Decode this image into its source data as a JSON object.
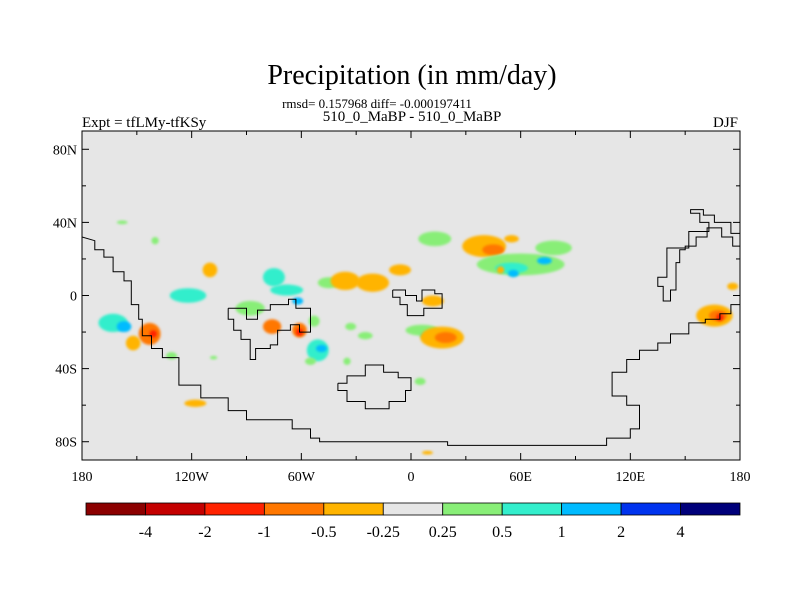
{
  "chart_data": {
    "type": "heatmap",
    "title": "Precipitation (in mm/day)",
    "stats_line": "rmsd= 0.157968 diff= -0.000197411",
    "subtitle": "510_0_MaBP - 510_0_MaBP",
    "left_label": "Expt = tfLMy-tfKSy",
    "right_label": "DJF",
    "x_range": [
      -180,
      180
    ],
    "y_range": [
      -90,
      90
    ],
    "x_ticks": [
      {
        "value": -180,
        "label": "180"
      },
      {
        "value": -120,
        "label": "120W"
      },
      {
        "value": -60,
        "label": "60W"
      },
      {
        "value": 0,
        "label": "0"
      },
      {
        "value": 60,
        "label": "60E"
      },
      {
        "value": 120,
        "label": "120E"
      },
      {
        "value": 180,
        "label": "180"
      }
    ],
    "y_ticks": [
      {
        "value": 80,
        "label": "80N"
      },
      {
        "value": 40,
        "label": "40N"
      },
      {
        "value": 0,
        "label": "0"
      },
      {
        "value": -40,
        "label": "40S"
      },
      {
        "value": -80,
        "label": "80S"
      }
    ],
    "colorbar": {
      "colors": [
        "#8b0000",
        "#c40000",
        "#ff2200",
        "#ff7700",
        "#ffb400",
        "#e6e6e6",
        "#88ee77",
        "#33eecc",
        "#00bbff",
        "#0033ee",
        "#00007a"
      ],
      "labels": [
        "-4",
        "-2",
        "-1",
        "-0.5",
        "-0.25",
        "0.25",
        "0.5",
        "1",
        "2",
        "4"
      ],
      "background_color": "#e6e6e6"
    },
    "anomalies": [
      {
        "lon": -163,
        "lat": -15,
        "rx": 8,
        "ry": 5,
        "value": 0.6
      },
      {
        "lon": -157,
        "lat": -17,
        "rx": 4,
        "ry": 3,
        "value": 1.2
      },
      {
        "lon": -143,
        "lat": -21,
        "rx": 6,
        "ry": 6,
        "value": -0.6
      },
      {
        "lon": -141,
        "lat": -21,
        "rx": 2,
        "ry": 2,
        "value": -1.5
      },
      {
        "lon": -152,
        "lat": -26,
        "rx": 4,
        "ry": 4,
        "value": -0.4
      },
      {
        "lon": -131,
        "lat": -33,
        "rx": 3,
        "ry": 2,
        "value": 0.4
      },
      {
        "lon": -110,
        "lat": 14,
        "rx": 4,
        "ry": 4,
        "value": -0.4
      },
      {
        "lon": -140,
        "lat": 30,
        "rx": 2,
        "ry": 2,
        "value": 0.4
      },
      {
        "lon": -122,
        "lat": 0,
        "rx": 10,
        "ry": 4,
        "value": 0.5
      },
      {
        "lon": -88,
        "lat": -7,
        "rx": 8,
        "ry": 4,
        "value": 0.4
      },
      {
        "lon": -75,
        "lat": 10,
        "rx": 6,
        "ry": 5,
        "value": 0.5
      },
      {
        "lon": -68,
        "lat": 3,
        "rx": 9,
        "ry": 3,
        "value": 0.6
      },
      {
        "lon": -62,
        "lat": -3,
        "rx": 3,
        "ry": 2,
        "value": 1.2
      },
      {
        "lon": -76,
        "lat": -17,
        "rx": 5,
        "ry": 4,
        "value": -0.6
      },
      {
        "lon": -61,
        "lat": -19,
        "rx": 4,
        "ry": 4,
        "value": -0.6
      },
      {
        "lon": -61,
        "lat": -20,
        "rx": 2,
        "ry": 2,
        "value": -1.5
      },
      {
        "lon": -53,
        "lat": -14,
        "rx": 3,
        "ry": 3,
        "value": 0.4
      },
      {
        "lon": -51,
        "lat": -30,
        "rx": 6,
        "ry": 6,
        "value": 0.5
      },
      {
        "lon": -49,
        "lat": -29,
        "rx": 3,
        "ry": 2,
        "value": 1.2
      },
      {
        "lon": -55,
        "lat": -36,
        "rx": 3,
        "ry": 2,
        "value": 0.4
      },
      {
        "lon": -33,
        "lat": -17,
        "rx": 3,
        "ry": 2,
        "value": 0.4
      },
      {
        "lon": -45,
        "lat": 7,
        "rx": 6,
        "ry": 3,
        "value": 0.4
      },
      {
        "lon": -36,
        "lat": 8,
        "rx": 8,
        "ry": 5,
        "value": -0.4
      },
      {
        "lon": -21,
        "lat": 7,
        "rx": 9,
        "ry": 5,
        "value": -0.4
      },
      {
        "lon": -6,
        "lat": 14,
        "rx": 6,
        "ry": 3,
        "value": -0.4
      },
      {
        "lon": 12,
        "lat": -3,
        "rx": 6,
        "ry": 3,
        "value": -0.3
      },
      {
        "lon": 6,
        "lat": -19,
        "rx": 9,
        "ry": 3,
        "value": 0.4
      },
      {
        "lon": 10,
        "lat": -22,
        "rx": 5,
        "ry": 2,
        "value": 0.6
      },
      {
        "lon": 17,
        "lat": -23,
        "rx": 12,
        "ry": 6,
        "value": -0.4
      },
      {
        "lon": 19,
        "lat": -23,
        "rx": 6,
        "ry": 3,
        "value": -0.7
      },
      {
        "lon": 5,
        "lat": -47,
        "rx": 3,
        "ry": 2,
        "value": 0.4
      },
      {
        "lon": -35,
        "lat": -36,
        "rx": 2,
        "ry": 2,
        "value": 0.4
      },
      {
        "lon": 13,
        "lat": 31,
        "rx": 9,
        "ry": 4,
        "value": 0.4
      },
      {
        "lon": 40,
        "lat": 27,
        "rx": 12,
        "ry": 6,
        "value": -0.4
      },
      {
        "lon": 45,
        "lat": 25,
        "rx": 6,
        "ry": 3,
        "value": -0.6
      },
      {
        "lon": 55,
        "lat": 31,
        "rx": 4,
        "ry": 2,
        "value": -0.4
      },
      {
        "lon": 60,
        "lat": 17,
        "rx": 24,
        "ry": 6,
        "value": 0.4
      },
      {
        "lon": 55,
        "lat": 15,
        "rx": 9,
        "ry": 3,
        "value": 0.7
      },
      {
        "lon": 56,
        "lat": 12,
        "rx": 3,
        "ry": 2,
        "value": 1.5
      },
      {
        "lon": 73,
        "lat": 19,
        "rx": 4,
        "ry": 2,
        "value": 1.2
      },
      {
        "lon": 78,
        "lat": 26,
        "rx": 10,
        "ry": 4,
        "value": 0.4
      },
      {
        "lon": 49,
        "lat": 14,
        "rx": 2,
        "ry": 2,
        "value": -0.4
      },
      {
        "lon": 166,
        "lat": -11,
        "rx": 10,
        "ry": 6,
        "value": -0.4
      },
      {
        "lon": 168,
        "lat": -11,
        "rx": 5,
        "ry": 3,
        "value": -0.7
      },
      {
        "lon": 169,
        "lat": -12,
        "rx": 2,
        "ry": 2,
        "value": -1.5
      },
      {
        "lon": 176,
        "lat": 5,
        "rx": 3,
        "ry": 2,
        "value": -0.4
      },
      {
        "lon": -118,
        "lat": -59,
        "rx": 6,
        "ry": 2,
        "value": -0.4
      },
      {
        "lon": 9,
        "lat": -86,
        "rx": 3,
        "ry": 1,
        "value": -0.4
      },
      {
        "lon": -158,
        "lat": 40,
        "rx": 3,
        "ry": 1,
        "value": 0.4
      },
      {
        "lon": -108,
        "lat": -34,
        "rx": 2,
        "ry": 1,
        "value": 0.3
      },
      {
        "lon": -25,
        "lat": -22,
        "rx": 4,
        "ry": 2,
        "value": 0.3
      }
    ],
    "coastlines": [
      [
        [
          -180,
          32
        ],
        [
          -173,
          30
        ],
        [
          -173,
          25
        ],
        [
          -168,
          25
        ],
        [
          -168,
          21
        ],
        [
          -163,
          21
        ],
        [
          -163,
          13
        ],
        [
          -157,
          13
        ],
        [
          -157,
          8
        ],
        [
          -153,
          8
        ],
        [
          -153,
          -5
        ],
        [
          -149,
          -5
        ],
        [
          -149,
          -13
        ],
        [
          -147,
          -13
        ],
        [
          -147,
          -22
        ],
        [
          -142,
          -22
        ],
        [
          -142,
          -29
        ],
        [
          -136,
          -29
        ],
        [
          -136,
          -34
        ],
        [
          -127,
          -34
        ],
        [
          -127,
          -49
        ],
        [
          -115,
          -49
        ],
        [
          -115,
          -56
        ],
        [
          -100,
          -56
        ],
        [
          -100,
          -63
        ],
        [
          -90,
          -63
        ],
        [
          -90,
          -68
        ],
        [
          -65,
          -68
        ],
        [
          -65,
          -73
        ],
        [
          -55,
          -73
        ],
        [
          -55,
          -78
        ],
        [
          -50,
          -78
        ],
        [
          -50,
          -80
        ],
        [
          20,
          -80
        ],
        [
          20,
          -82
        ],
        [
          107,
          -82
        ],
        [
          107,
          -78
        ],
        [
          120,
          -78
        ],
        [
          120,
          -73
        ],
        [
          125,
          -73
        ],
        [
          125,
          -60
        ],
        [
          118,
          -60
        ],
        [
          118,
          -55
        ],
        [
          110,
          -55
        ],
        [
          110,
          -42
        ],
        [
          118,
          -42
        ],
        [
          118,
          -35
        ],
        [
          125,
          -35
        ],
        [
          125,
          -30
        ],
        [
          135,
          -30
        ],
        [
          135,
          -26
        ],
        [
          142,
          -26
        ],
        [
          142,
          -21
        ],
        [
          152,
          -21
        ],
        [
          152,
          -15
        ],
        [
          161,
          -15
        ],
        [
          161,
          -13
        ],
        [
          169,
          -13
        ],
        [
          169,
          -10
        ],
        [
          175,
          -10
        ],
        [
          175,
          -5
        ],
        [
          180,
          -5
        ]
      ],
      [
        [
          180,
          34
        ],
        [
          175,
          34
        ],
        [
          175,
          40
        ],
        [
          166,
          40
        ],
        [
          166,
          44
        ],
        [
          160,
          44
        ],
        [
          160,
          47
        ],
        [
          153,
          47
        ],
        [
          153,
          45
        ],
        [
          158,
          45
        ],
        [
          158,
          40
        ],
        [
          163,
          40
        ],
        [
          163,
          35
        ],
        [
          152,
          35
        ],
        [
          152,
          26
        ],
        [
          140,
          26
        ],
        [
          140,
          10
        ],
        [
          135,
          10
        ],
        [
          135,
          5
        ],
        [
          138,
          5
        ],
        [
          138,
          -3
        ],
        [
          142,
          -3
        ],
        [
          142,
          3
        ],
        [
          145,
          3
        ],
        [
          145,
          18
        ],
        [
          147,
          18
        ],
        [
          147,
          25
        ],
        [
          150,
          25
        ],
        [
          150,
          27
        ],
        [
          156,
          27
        ],
        [
          156,
          32
        ],
        [
          162,
          32
        ],
        [
          162,
          37
        ],
        [
          170,
          37
        ],
        [
          170,
          32
        ],
        [
          176,
          32
        ],
        [
          176,
          27
        ],
        [
          180,
          27
        ]
      ],
      [
        [
          -100,
          -7
        ],
        [
          -90,
          -7
        ],
        [
          -90,
          -13
        ],
        [
          -84,
          -13
        ],
        [
          -84,
          -8
        ],
        [
          -77,
          -8
        ],
        [
          -77,
          -5
        ],
        [
          -67,
          -5
        ],
        [
          -67,
          -2
        ],
        [
          -63,
          -2
        ],
        [
          -63,
          -7
        ],
        [
          -55,
          -7
        ],
        [
          -55,
          -20
        ],
        [
          -61,
          -20
        ],
        [
          -61,
          -16
        ],
        [
          -66,
          -16
        ],
        [
          -66,
          -19
        ],
        [
          -73,
          -19
        ],
        [
          -73,
          -27
        ],
        [
          -77,
          -27
        ],
        [
          -77,
          -29
        ],
        [
          -85,
          -29
        ],
        [
          -85,
          -35
        ],
        [
          -88,
          -35
        ],
        [
          -88,
          -24
        ],
        [
          -93,
          -24
        ],
        [
          -93,
          -19
        ],
        [
          -97,
          -19
        ],
        [
          -97,
          -13
        ],
        [
          -100,
          -13
        ],
        [
          -100,
          -7
        ]
      ],
      [
        [
          -10,
          3
        ],
        [
          -3,
          3
        ],
        [
          -3,
          0
        ],
        [
          3,
          0
        ],
        [
          3,
          -3
        ],
        [
          6,
          -3
        ],
        [
          6,
          3
        ],
        [
          13,
          3
        ],
        [
          13,
          1
        ],
        [
          17,
          1
        ],
        [
          17,
          -7
        ],
        [
          7,
          -7
        ],
        [
          7,
          -11
        ],
        [
          -2,
          -11
        ],
        [
          -2,
          -5
        ],
        [
          -6,
          -5
        ],
        [
          -6,
          -1
        ],
        [
          -10,
          -1
        ],
        [
          -10,
          3
        ]
      ],
      [
        [
          -40,
          -48
        ],
        [
          -40,
          -52
        ],
        [
          -35,
          -52
        ],
        [
          -35,
          -58
        ],
        [
          -25,
          -58
        ],
        [
          -25,
          -62
        ],
        [
          -12,
          -62
        ],
        [
          -12,
          -58
        ],
        [
          -3,
          -58
        ],
        [
          -3,
          -52
        ],
        [
          0,
          -52
        ],
        [
          0,
          -45
        ],
        [
          -7,
          -45
        ],
        [
          -7,
          -42
        ],
        [
          -15,
          -42
        ],
        [
          -15,
          -38
        ],
        [
          -25,
          -38
        ],
        [
          -25,
          -44
        ],
        [
          -35,
          -44
        ],
        [
          -35,
          -48
        ],
        [
          -40,
          -48
        ]
      ]
    ]
  }
}
